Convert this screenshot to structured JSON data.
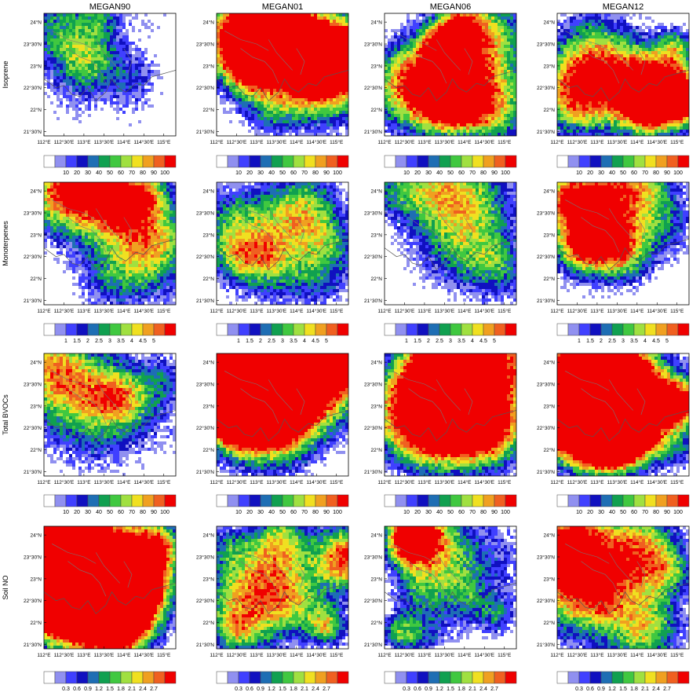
{
  "chart_data": {
    "type": "heatmap",
    "title": "",
    "columns": [
      "MEGAN90",
      "MEGAN01",
      "MEGAN06",
      "MEGAN12"
    ],
    "rows": [
      {
        "name": "Isoprene",
        "scale": "iso",
        "levels": [
          10,
          20,
          30,
          40,
          50,
          60,
          70,
          80,
          90,
          100
        ]
      },
      {
        "name": "Monoterpenes",
        "scale": "mono",
        "levels": [
          1,
          1.5,
          2,
          2.5,
          3,
          3.5,
          4,
          4.5,
          5
        ]
      },
      {
        "name": "Total BVOCs",
        "scale": "tot",
        "levels": [
          10,
          20,
          30,
          40,
          50,
          60,
          70,
          80,
          90,
          100
        ]
      },
      {
        "name": "Soil NO",
        "scale": "no",
        "levels": [
          0.3,
          0.6,
          0.9,
          1.2,
          1.5,
          1.8,
          2.1,
          2.4,
          2.7
        ]
      }
    ],
    "x_ticks": [
      "112°E",
      "112°30'E",
      "113°E",
      "113°30'E",
      "114°E",
      "114°30'E",
      "115°E"
    ],
    "y_ticks": [
      "24°N",
      "23°30'N",
      "23°N",
      "22°30'N",
      "22°N",
      "21°30'N"
    ],
    "xlim": [
      112,
      115.3
    ],
    "ylim": [
      21.4,
      24.2
    ],
    "colorbar_colors": [
      "#ffffff",
      "#9090f0",
      "#4040ff",
      "#1010c0",
      "#1e6eb4",
      "#10a050",
      "#40c840",
      "#a0e040",
      "#f0e020",
      "#f0a020",
      "#f06020",
      "#f00000"
    ],
    "intensity": [
      [
        0.22,
        0.62,
        0.55,
        0.78
      ],
      [
        0.38,
        0.32,
        0.3,
        0.34
      ],
      [
        0.3,
        0.66,
        0.55,
        0.8
      ],
      [
        0.72,
        0.5,
        0.46,
        0.4
      ]
    ]
  }
}
